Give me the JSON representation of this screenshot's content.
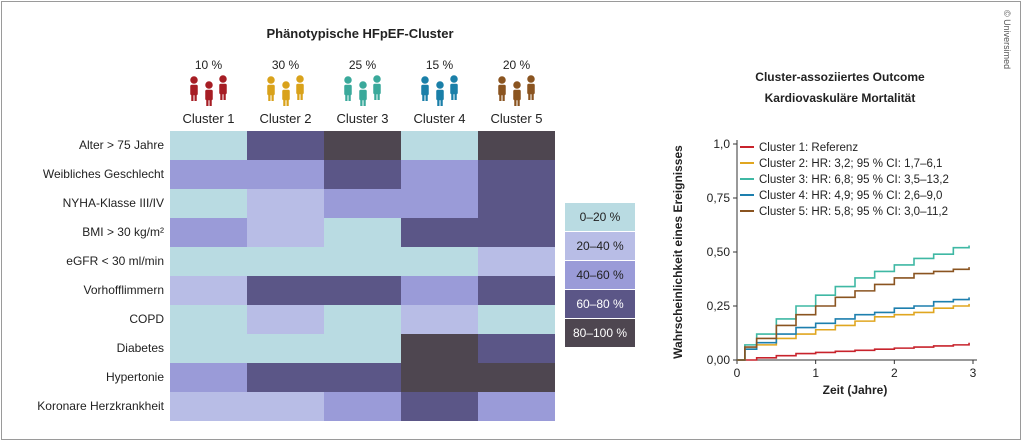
{
  "copyright": "© Universimed",
  "heatmap": {
    "title": "Phänotypische HFpEF-Cluster",
    "clusters": [
      {
        "name": "Cluster 1",
        "pct": "10 %",
        "color": "#a61d24"
      },
      {
        "name": "Cluster 2",
        "pct": "30 %",
        "color": "#d9a21b"
      },
      {
        "name": "Cluster 3",
        "pct": "25 %",
        "color": "#3aa99b"
      },
      {
        "name": "Cluster 4",
        "pct": "15 %",
        "color": "#1a7fa8"
      },
      {
        "name": "Cluster 5",
        "pct": "20 %",
        "color": "#8a5420"
      }
    ],
    "rows": [
      "Alter > 75 Jahre",
      "Weibliches Geschlecht",
      "NYHA-Klasse III/IV",
      "BMI > 30 kg/m²",
      "eGFR < 30 ml/min",
      "Vorhofflimmern",
      "COPD",
      "Diabetes",
      "Hypertonie",
      "Koronare Herzkrankheit"
    ],
    "legend": [
      "0–20 %",
      "20–40 %",
      "40–60 %",
      "60–80 %",
      "80–100 %"
    ],
    "legend_colors": [
      "#b9dbe2",
      "#b8bde6",
      "#9a9bd8",
      "#5b5687",
      "#4e4650"
    ],
    "level_index": [
      [
        0,
        3,
        4,
        0,
        4
      ],
      [
        2,
        2,
        3,
        2,
        3
      ],
      [
        0,
        1,
        2,
        2,
        3
      ],
      [
        2,
        1,
        0,
        3,
        3
      ],
      [
        0,
        0,
        0,
        0,
        1
      ],
      [
        1,
        3,
        3,
        2,
        3
      ],
      [
        0,
        1,
        0,
        1,
        0
      ],
      [
        0,
        0,
        0,
        4,
        3
      ],
      [
        2,
        3,
        3,
        4,
        4
      ],
      [
        1,
        1,
        2,
        3,
        2
      ]
    ]
  },
  "chart_data": {
    "type": "line",
    "title": "Cluster-assoziiertes Outcome",
    "subtitle": "Kardiovaskuläre Mortalität",
    "xlabel": "Zeit (Jahre)",
    "ylabel": "Wahrscheinlichkeit eines Ereignisses",
    "xlim": [
      0,
      3
    ],
    "ylim": [
      0,
      1
    ],
    "xticks": [
      "0",
      "1",
      "2",
      "3"
    ],
    "yticks": [
      "0,00",
      "0,25",
      "0,50",
      "0,75",
      "1,0"
    ],
    "ytick_values": [
      0,
      0.25,
      0.5,
      0.75,
      1.0
    ],
    "grid": false,
    "legend_position": "top-left",
    "series": [
      {
        "name": "Cluster 1: Referenz",
        "color": "#c8232c",
        "x": [
          0,
          0.25,
          0.5,
          0.75,
          1,
          1.25,
          1.5,
          1.75,
          2,
          2.25,
          2.5,
          2.75,
          2.95
        ],
        "y": [
          0,
          0.01,
          0.02,
          0.03,
          0.035,
          0.04,
          0.045,
          0.05,
          0.055,
          0.06,
          0.065,
          0.07,
          0.08
        ]
      },
      {
        "name": "Cluster 2: HR: 3,2; 95 % CI: 1,7–6,1",
        "color": "#e0a620",
        "x": [
          0,
          0.1,
          0.25,
          0.5,
          0.75,
          1,
          1.25,
          1.5,
          1.75,
          2,
          2.25,
          2.5,
          2.75,
          2.95
        ],
        "y": [
          0,
          0.05,
          0.07,
          0.1,
          0.12,
          0.14,
          0.16,
          0.18,
          0.2,
          0.21,
          0.22,
          0.24,
          0.25,
          0.26
        ]
      },
      {
        "name": "Cluster 3: HR: 6,8; 95 % CI: 3,5–13,2",
        "color": "#3fb8a4",
        "x": [
          0,
          0.1,
          0.25,
          0.5,
          0.75,
          1,
          1.25,
          1.5,
          1.75,
          2,
          2.25,
          2.5,
          2.75,
          2.95
        ],
        "y": [
          0,
          0.07,
          0.12,
          0.19,
          0.25,
          0.3,
          0.34,
          0.38,
          0.41,
          0.44,
          0.47,
          0.49,
          0.52,
          0.53
        ]
      },
      {
        "name": "Cluster 4: HR: 4,9; 95 % CI: 2,6–9,0",
        "color": "#1d7fae",
        "x": [
          0,
          0.1,
          0.25,
          0.5,
          0.75,
          1,
          1.25,
          1.5,
          1.75,
          2,
          2.25,
          2.5,
          2.75,
          2.95
        ],
        "y": [
          0,
          0.05,
          0.08,
          0.12,
          0.15,
          0.17,
          0.19,
          0.21,
          0.22,
          0.24,
          0.25,
          0.27,
          0.28,
          0.29
        ]
      },
      {
        "name": "Cluster 5: HR: 5,8; 95 % CI: 3,0–11,2",
        "color": "#8a5420",
        "x": [
          0,
          0.1,
          0.25,
          0.5,
          0.75,
          1,
          1.25,
          1.5,
          1.75,
          2,
          2.25,
          2.5,
          2.75,
          2.95
        ],
        "y": [
          0,
          0.06,
          0.1,
          0.16,
          0.21,
          0.25,
          0.29,
          0.32,
          0.35,
          0.38,
          0.4,
          0.41,
          0.42,
          0.43
        ]
      }
    ]
  }
}
